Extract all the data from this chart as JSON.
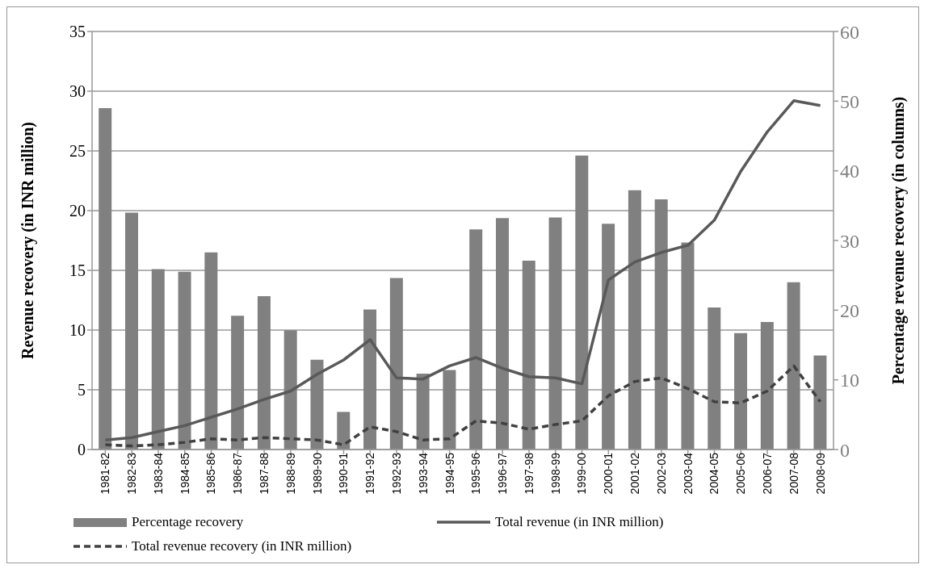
{
  "chart_data": {
    "type": "bar",
    "categories": [
      "1981-82",
      "1982-83",
      "1983-84",
      "1984-85",
      "1985-86",
      "1986-87",
      "1987-88",
      "1988-89",
      "1989-90",
      "1990-91",
      "1991-92",
      "1992-93",
      "1993-94",
      "1994-95",
      "1995-96",
      "1996-97",
      "1997-98",
      "1998-99",
      "1999-00",
      "2000-01",
      "2001-02",
      "2002-03",
      "2003-04",
      "2004-05",
      "2005-06",
      "2006-07",
      "2007-08",
      "2008-09"
    ],
    "ylabel": "Revenue recovery (in INR million)",
    "y2label": "Percentage revenue recovery (in columns)",
    "ylim": [
      0,
      35
    ],
    "yticks": [
      0,
      5,
      10,
      15,
      20,
      25,
      30,
      35
    ],
    "y2lim": [
      0,
      60
    ],
    "y2ticks": [
      0,
      10,
      20,
      30,
      40,
      50,
      60
    ],
    "grid": "y",
    "legend": "bottom",
    "series": [
      {
        "name": "Percentage recovery",
        "axis": "y2",
        "color": "#808080",
        "values": [
          49.0,
          34.0,
          25.9,
          25.5,
          28.3,
          19.2,
          22.0,
          17.1,
          12.9,
          5.4,
          20.1,
          24.6,
          10.9,
          11.4,
          31.6,
          33.2,
          27.1,
          33.3,
          42.2,
          32.4,
          37.2,
          35.9,
          29.7,
          20.4,
          16.7,
          18.3,
          24.0,
          13.5
        ]
      },
      {
        "name": "Total revenue (in INR million)",
        "type": "line",
        "color": "#595959",
        "line_style": "solid",
        "values": [
          0.8,
          1.0,
          1.5,
          2.0,
          2.7,
          3.4,
          4.2,
          4.9,
          6.3,
          7.5,
          9.2,
          6.0,
          5.9,
          7.0,
          7.7,
          6.8,
          6.1,
          6.0,
          5.5,
          14.2,
          15.7,
          16.5,
          17.1,
          19.2,
          23.3,
          26.6,
          29.2,
          28.8
        ]
      },
      {
        "name": "Total revenue recovery (in INR million)",
        "type": "line",
        "color": "#404040",
        "line_style": "dashed",
        "values": [
          0.4,
          0.3,
          0.4,
          0.6,
          0.9,
          0.8,
          1.0,
          0.9,
          0.8,
          0.4,
          1.9,
          1.5,
          0.8,
          0.9,
          2.4,
          2.2,
          1.7,
          2.1,
          2.4,
          4.5,
          5.7,
          6.0,
          5.1,
          4.0,
          3.9,
          4.9,
          7.0,
          4.0
        ]
      }
    ]
  }
}
